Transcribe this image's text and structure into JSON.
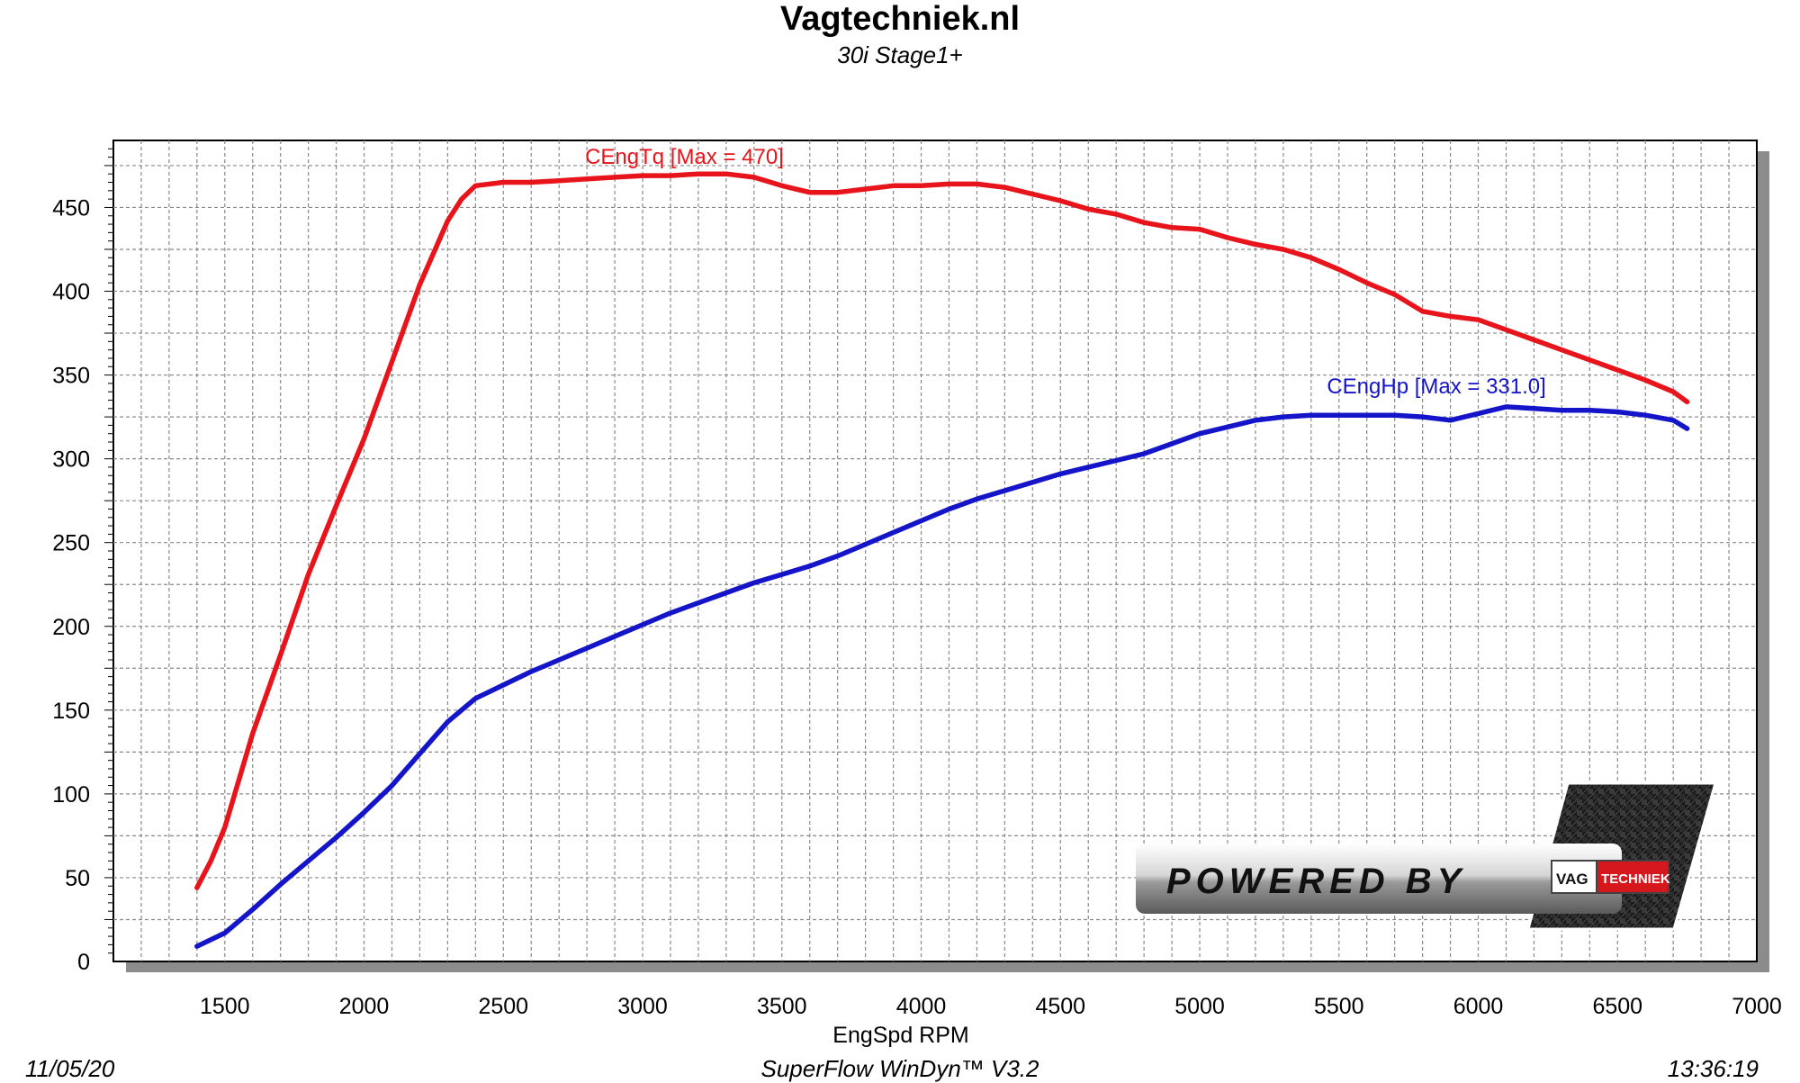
{
  "header": {
    "title": "Vagtechniek.nl",
    "subtitle": "30i Stage1+"
  },
  "footer": {
    "date": "11/05/20",
    "software": "SuperFlow WinDyn™  V3.2",
    "time": "13:36:19"
  },
  "logo": {
    "powered_by": "POWERED BY",
    "brand_left": "VAG",
    "brand_right": "TECHNIEK"
  },
  "colors": {
    "torque": "#e8141b",
    "power": "#1414c8",
    "grid": "#8a8a8a",
    "plot_bg": "#ffffff",
    "shadow": "#8c8c8c"
  },
  "chart_data": {
    "type": "line",
    "title": "Vagtechniek.nl",
    "subtitle": "30i Stage1+",
    "xlabel": "EngSpd RPM",
    "ylabel": "",
    "xlim": [
      1100,
      7000
    ],
    "ylim": [
      0,
      490
    ],
    "x_ticks": [
      1500,
      2000,
      2500,
      3000,
      3500,
      4000,
      4500,
      5000,
      5500,
      6000,
      6500,
      7000
    ],
    "y_ticks": [
      0,
      50,
      100,
      150,
      200,
      250,
      300,
      350,
      400,
      450
    ],
    "grid": true,
    "series": [
      {
        "name": "CEngTq",
        "label": "CEngTq [Max = 470]",
        "color": "#e8141b",
        "x": [
          1400,
          1450,
          1500,
          1600,
          1700,
          1800,
          1900,
          2000,
          2100,
          2200,
          2300,
          2350,
          2400,
          2500,
          2600,
          2700,
          2800,
          2900,
          3000,
          3100,
          3200,
          3300,
          3400,
          3500,
          3600,
          3700,
          3800,
          3900,
          4000,
          4100,
          4200,
          4300,
          4400,
          4500,
          4600,
          4700,
          4800,
          4900,
          5000,
          5100,
          5200,
          5300,
          5400,
          5500,
          5600,
          5700,
          5800,
          5900,
          6000,
          6100,
          6200,
          6300,
          6400,
          6500,
          6600,
          6700,
          6750
        ],
        "values": [
          44,
          60,
          80,
          136,
          183,
          231,
          272,
          312,
          358,
          404,
          442,
          455,
          463,
          465,
          465,
          466,
          467,
          468,
          469,
          469,
          470,
          470,
          468,
          463,
          459,
          459,
          461,
          463,
          463,
          464,
          464,
          462,
          458,
          454,
          449,
          446,
          441,
          438,
          437,
          432,
          428,
          425,
          420,
          413,
          405,
          398,
          388,
          385,
          383,
          377,
          371,
          365,
          359,
          353,
          347,
          340,
          334
        ]
      },
      {
        "name": "CEngHp",
        "label": "CEngHp [Max = 331.0]",
        "color": "#1414c8",
        "x": [
          1400,
          1500,
          1600,
          1700,
          1800,
          1900,
          2000,
          2100,
          2200,
          2300,
          2400,
          2500,
          2600,
          2700,
          2800,
          2900,
          3000,
          3100,
          3200,
          3300,
          3400,
          3500,
          3600,
          3700,
          3800,
          3900,
          4000,
          4100,
          4200,
          4300,
          4400,
          4500,
          4600,
          4700,
          4800,
          4900,
          5000,
          5100,
          5200,
          5300,
          5400,
          5500,
          5600,
          5700,
          5800,
          5900,
          6000,
          6100,
          6200,
          6300,
          6400,
          6500,
          6600,
          6700,
          6750
        ],
        "values": [
          9,
          17,
          31,
          46,
          60,
          74,
          89,
          105,
          124,
          143,
          157,
          165,
          173,
          180,
          187,
          194,
          201,
          208,
          214,
          220,
          226,
          231,
          236,
          242,
          249,
          256,
          263,
          270,
          276,
          281,
          286,
          291,
          295,
          299,
          303,
          309,
          315,
          319,
          323,
          325,
          326,
          326,
          326,
          326,
          325,
          323,
          327,
          331,
          330,
          329,
          329,
          328,
          326,
          323,
          318
        ]
      }
    ]
  }
}
